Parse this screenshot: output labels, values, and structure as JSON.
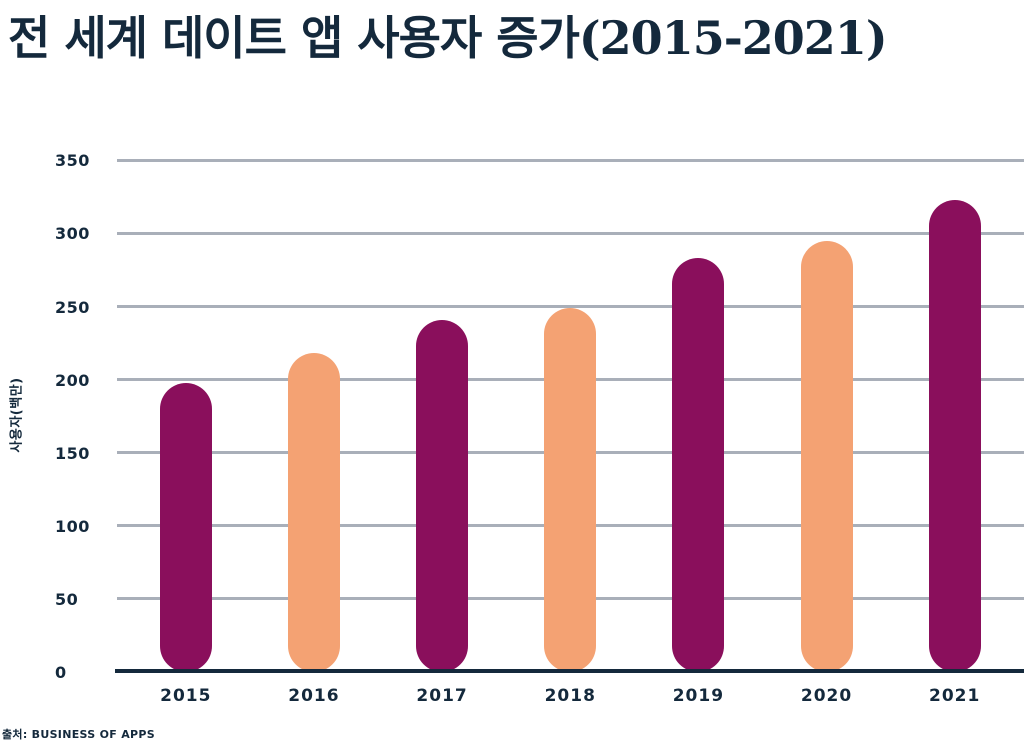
{
  "title": "전 세계 데이트 앱 사용자 증가(2015-2021)",
  "source": "출처: BUSINESS OF APPS",
  "colors": {
    "background": "#FFFFFF",
    "text": "#14293C",
    "gridline": "#A9AFB9",
    "axis_line": "#14293C",
    "bar_magenta": "#8A0F5C",
    "bar_orange": "#F4A273"
  },
  "chart_data": {
    "type": "bar",
    "title": "전 세계 데이트 앱 사용자 증가(2015-2021)",
    "categories": [
      "2015",
      "2016",
      "2017",
      "2018",
      "2019",
      "2020",
      "2021"
    ],
    "values": [
      198,
      218,
      241,
      249,
      283,
      295,
      323
    ],
    "bar_color_pattern": [
      "#8A0F5C",
      "#F4A273"
    ],
    "xlabel": "",
    "ylabel": "사용자(백만)",
    "ylim": [
      0,
      350
    ],
    "yticks": [
      0,
      50,
      100,
      150,
      200,
      250,
      300,
      350
    ],
    "grid": true,
    "legend": false,
    "source": "출처: BUSINESS OF APPS"
  }
}
